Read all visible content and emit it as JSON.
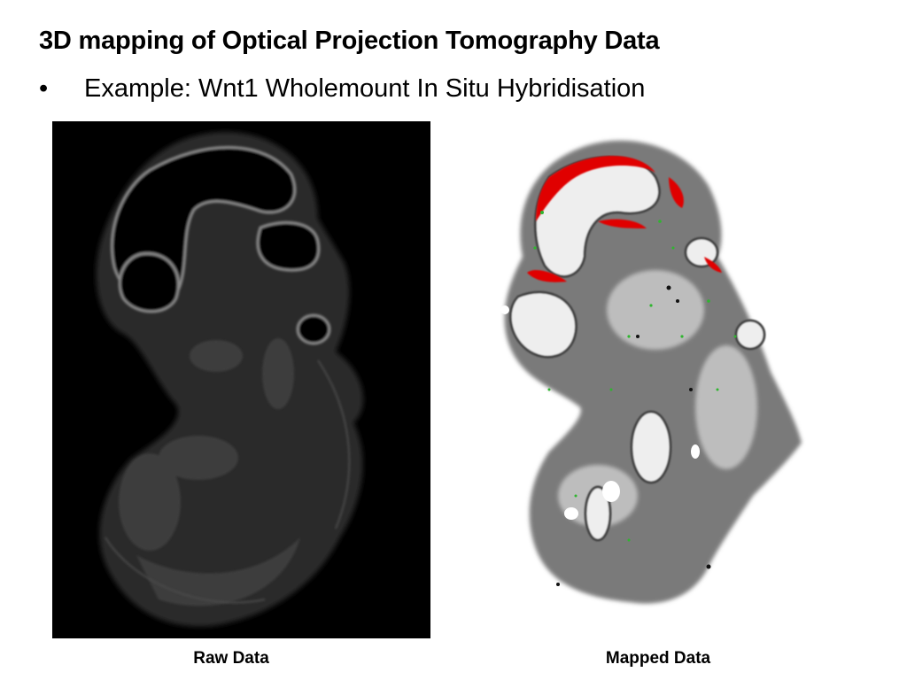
{
  "slide": {
    "title": "3D mapping of Optical Projection Tomography Data",
    "bullet_marker": "•",
    "bullet_text": "Example: Wnt1 Wholemount In Situ Hybridisation"
  },
  "images": {
    "raw": {
      "caption": "Raw Data"
    },
    "mapped": {
      "caption": "Mapped Data"
    }
  }
}
